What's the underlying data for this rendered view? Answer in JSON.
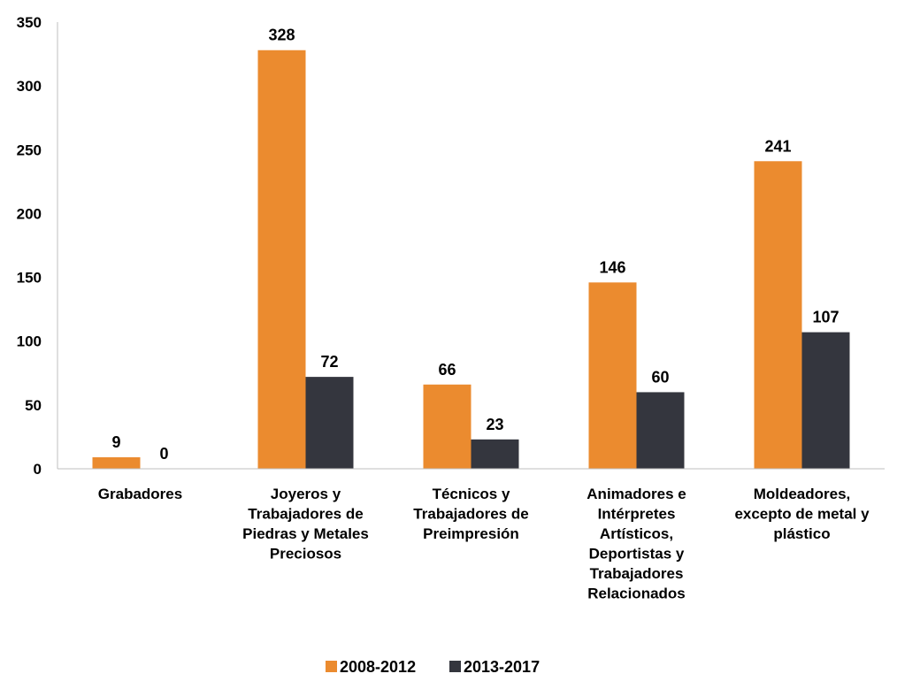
{
  "chart_data": {
    "type": "bar",
    "categories": [
      [
        "Grabadores"
      ],
      [
        "Joyeros y",
        "Trabajadores de",
        "Piedras y Metales",
        "Preciosos"
      ],
      [
        "Técnicos y",
        "Trabajadores de",
        "Preimpresión"
      ],
      [
        "Animadores e",
        "Intérpretes",
        "Artísticos,",
        "Deportistas y",
        "Trabajadores",
        "Relacionados"
      ],
      [
        "Moldeadores,",
        "excepto de metal y",
        "plástico"
      ]
    ],
    "series": [
      {
        "name": "2008-2012",
        "color": "#EB8B2F",
        "values": [
          9,
          328,
          66,
          146,
          241
        ]
      },
      {
        "name": "2013-2017",
        "color": "#34363E",
        "values": [
          0,
          72,
          23,
          60,
          107
        ]
      }
    ],
    "ylim": [
      0,
      350
    ],
    "yticks": [
      "0",
      "50",
      "100",
      "150",
      "200",
      "250",
      "300",
      "350"
    ],
    "legend_position": "bottom-center",
    "grid": false
  }
}
